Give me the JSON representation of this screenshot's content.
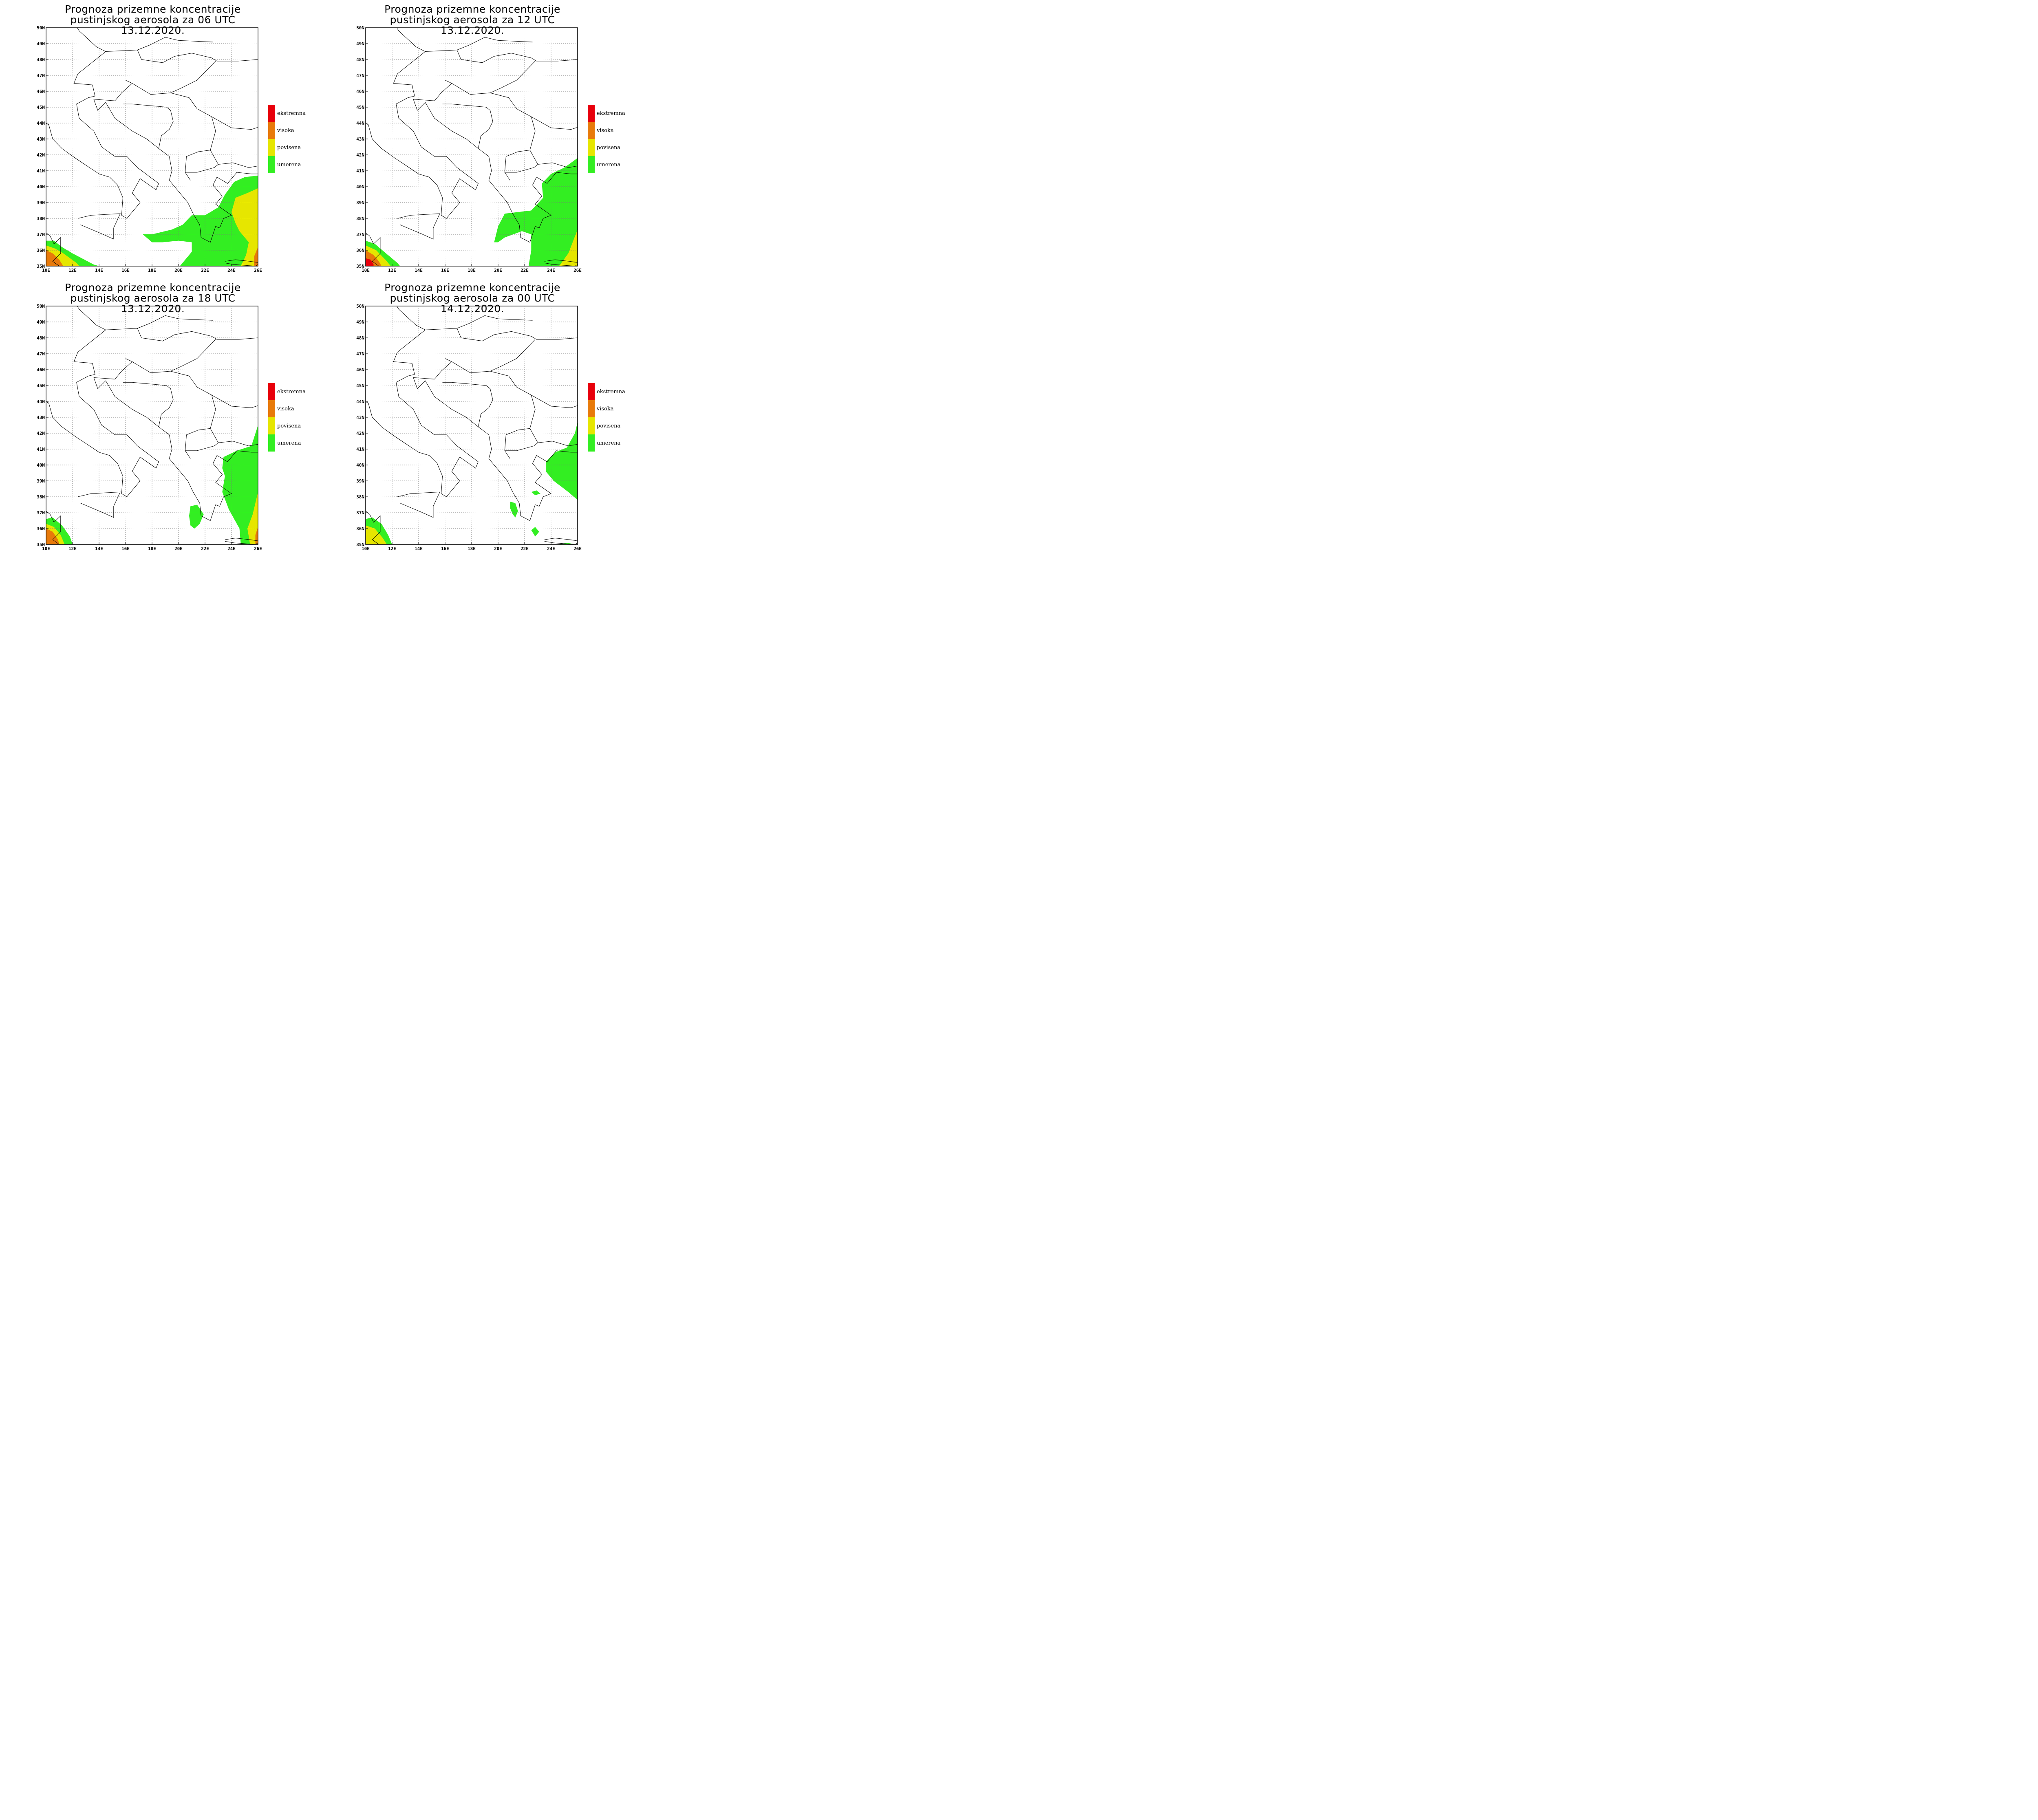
{
  "title_line1": "Prognoza prizemne koncentracije",
  "panels": [
    {
      "title_line2": "pustinjskog aerosola za 06 UTC 13.12.2020."
    },
    {
      "title_line2": "pustinjskog aerosola za 12 UTC 13.12.2020."
    },
    {
      "title_line2": "pustinjskog aerosola za 18 UTC 13.12.2020."
    },
    {
      "title_line2": "pustinjskog aerosola za 00 UTC 14.12.2020."
    }
  ],
  "axes": {
    "lon_labels": [
      "10E",
      "12E",
      "14E",
      "16E",
      "18E",
      "20E",
      "22E",
      "24E",
      "26E"
    ],
    "lat_labels": [
      "35N",
      "36N",
      "37N",
      "38N",
      "39N",
      "40N",
      "41N",
      "42N",
      "43N",
      "44N",
      "45N",
      "46N",
      "47N",
      "48N",
      "49N",
      "50N"
    ]
  },
  "legend": [
    {
      "label": "ekstremna",
      "color": "#e8000b"
    },
    {
      "label": "visoka",
      "color": "#e87a0a"
    },
    {
      "label": "povisena",
      "color": "#e6e600"
    },
    {
      "label": "umerena",
      "color": "#33ee22"
    }
  ],
  "colors": {
    "umerena": "#33ee22",
    "povisena": "#e6e600",
    "visoka": "#e87a0a",
    "ekstremna": "#e8000b"
  },
  "chart_data": {
    "type": "map",
    "lon_range": [
      10,
      26
    ],
    "lat_range": [
      35,
      50
    ],
    "maps": [
      {
        "time": "06 UTC 13.12.2020",
        "regions": [
          {
            "level": "umerena",
            "lonlat": [
              [
                10,
                35
              ],
              [
                10,
                36.6
              ],
              [
                10.6,
                36.6
              ],
              [
                11.2,
                36.2
              ],
              [
                12,
                35.8
              ],
              [
                13.6,
                35.1
              ],
              [
                14,
                35
              ]
            ]
          },
          {
            "level": "povisena",
            "lonlat": [
              [
                10,
                35
              ],
              [
                10,
                36.3
              ],
              [
                10.7,
                36.1
              ],
              [
                11.3,
                35.8
              ],
              [
                12.3,
                35.2
              ],
              [
                12.5,
                35
              ]
            ]
          },
          {
            "level": "visoka",
            "lonlat": [
              [
                10,
                35
              ],
              [
                10,
                36
              ],
              [
                10.5,
                35.8
              ],
              [
                11,
                35.4
              ],
              [
                11.3,
                35
              ]
            ]
          },
          {
            "level": "umerena",
            "lonlat": [
              [
                17.3,
                37
              ],
              [
                18,
                37
              ],
              [
                19.5,
                37.3
              ],
              [
                20.3,
                37.6
              ],
              [
                21,
                38.2
              ],
              [
                22,
                38.2
              ],
              [
                23,
                38.7
              ],
              [
                23.5,
                39.5
              ],
              [
                24.2,
                40.3
              ],
              [
                25,
                40.6
              ],
              [
                26,
                40.7
              ],
              [
                26,
                35
              ],
              [
                20.1,
                35
              ],
              [
                21,
                35.9
              ],
              [
                21,
                36.5
              ],
              [
                20,
                36.6
              ],
              [
                18.8,
                36.5
              ],
              [
                18,
                36.5
              ]
            ]
          },
          {
            "level": "povisena",
            "lonlat": [
              [
                24,
                38.4
              ],
              [
                24.3,
                39.3
              ],
              [
                25.2,
                39.6
              ],
              [
                26,
                39.9
              ],
              [
                26,
                35
              ],
              [
                24.7,
                35
              ],
              [
                25.1,
                35.7
              ],
              [
                25.3,
                36.5
              ],
              [
                24.6,
                37.2
              ],
              [
                24.3,
                37.7
              ]
            ]
          },
          {
            "level": "visoka",
            "lonlat": [
              [
                25.7,
                35
              ],
              [
                25.7,
                35.6
              ],
              [
                26,
                36.2
              ],
              [
                26,
                35
              ]
            ]
          }
        ]
      },
      {
        "time": "12 UTC 13.12.2020",
        "regions": [
          {
            "level": "umerena",
            "lonlat": [
              [
                10,
                35
              ],
              [
                10,
                36.6
              ],
              [
                10.7,
                36.4
              ],
              [
                11.4,
                35.9
              ],
              [
                12.4,
                35.2
              ],
              [
                12.6,
                35
              ]
            ]
          },
          {
            "level": "povisena",
            "lonlat": [
              [
                10,
                35
              ],
              [
                10,
                36.3
              ],
              [
                10.8,
                36
              ],
              [
                11.5,
                35.4
              ],
              [
                11.9,
                35
              ]
            ]
          },
          {
            "level": "visoka",
            "lonlat": [
              [
                10,
                35
              ],
              [
                10,
                36
              ],
              [
                10.6,
                35.7
              ],
              [
                11,
                35.3
              ],
              [
                11.2,
                35
              ]
            ]
          },
          {
            "level": "ekstremna",
            "lonlat": [
              [
                10,
                35
              ],
              [
                10,
                35.5
              ],
              [
                10.4,
                35.4
              ],
              [
                10.6,
                35.1
              ],
              [
                10.6,
                35
              ]
            ]
          },
          {
            "level": "umerena",
            "lonlat": [
              [
                19.7,
                36.5
              ],
              [
                20,
                37.5
              ],
              [
                20.5,
                38.3
              ],
              [
                21.5,
                38.4
              ],
              [
                22.5,
                38.5
              ],
              [
                23.4,
                39.3
              ],
              [
                23.3,
                40.2
              ],
              [
                24,
                40.8
              ],
              [
                25,
                41.2
              ],
              [
                26,
                41.8
              ],
              [
                26,
                35
              ],
              [
                22.3,
                35
              ],
              [
                22.5,
                36
              ],
              [
                22.5,
                37
              ],
              [
                21.8,
                37.2
              ],
              [
                20.5,
                36.8
              ],
              [
                20,
                36.5
              ]
            ]
          },
          {
            "level": "povisena",
            "lonlat": [
              [
                24.6,
                35
              ],
              [
                25.3,
                35.8
              ],
              [
                26,
                37.3
              ],
              [
                26,
                35
              ]
            ]
          }
        ]
      },
      {
        "time": "18 UTC 13.12.2020",
        "regions": [
          {
            "level": "umerena",
            "lonlat": [
              [
                10,
                35
              ],
              [
                10,
                36.6
              ],
              [
                10.5,
                36.7
              ],
              [
                11.2,
                36.2
              ],
              [
                11.8,
                35.5
              ],
              [
                12,
                35
              ]
            ]
          },
          {
            "level": "povisena",
            "lonlat": [
              [
                10,
                35
              ],
              [
                10,
                36.3
              ],
              [
                10.6,
                36.1
              ],
              [
                11.1,
                35.6
              ],
              [
                11.4,
                35
              ]
            ]
          },
          {
            "level": "visoka",
            "lonlat": [
              [
                10,
                35
              ],
              [
                10,
                36
              ],
              [
                10.5,
                35.8
              ],
              [
                10.9,
                35.3
              ],
              [
                11,
                35
              ]
            ]
          },
          {
            "level": "umerena",
            "lonlat": [
              [
                23.3,
                39.8
              ],
              [
                23.4,
                40.5
              ],
              [
                24.4,
                40.9
              ],
              [
                25.5,
                41.2
              ],
              [
                26,
                42.5
              ],
              [
                26,
                35
              ],
              [
                24.7,
                35
              ],
              [
                24.6,
                36
              ],
              [
                23.8,
                37.2
              ],
              [
                23.3,
                38.3
              ],
              [
                23.5,
                39.3
              ]
            ]
          },
          {
            "level": "umerena",
            "lonlat": [
              [
                20.9,
                37.4
              ],
              [
                21.4,
                37.5
              ],
              [
                21.9,
                36.9
              ],
              [
                21.6,
                36.3
              ],
              [
                21.2,
                36
              ],
              [
                20.9,
                36.2
              ],
              [
                20.8,
                36.8
              ]
            ]
          },
          {
            "level": "povisena",
            "lonlat": [
              [
                25.4,
                35
              ],
              [
                25.2,
                36
              ],
              [
                25.6,
                36.9
              ],
              [
                26,
                38.3
              ],
              [
                26,
                35
              ]
            ]
          },
          {
            "level": "visoka",
            "lonlat": [
              [
                25.8,
                35
              ],
              [
                25.8,
                35.6
              ],
              [
                26,
                36.1
              ],
              [
                26,
                35
              ]
            ]
          }
        ]
      },
      {
        "time": "00 UTC 14.12.2020",
        "regions": [
          {
            "level": "umerena",
            "lonlat": [
              [
                10,
                35
              ],
              [
                10,
                36.6
              ],
              [
                10.5,
                36.7
              ],
              [
                11.2,
                36.3
              ],
              [
                11.7,
                35.6
              ],
              [
                12,
                35
              ]
            ]
          },
          {
            "level": "povisena",
            "lonlat": [
              [
                10,
                35
              ],
              [
                10,
                36.2
              ],
              [
                10.7,
                36
              ],
              [
                11.3,
                35.4
              ],
              [
                11.6,
                35
              ]
            ]
          },
          {
            "level": "umerena",
            "lonlat": [
              [
                23.6,
                40.2
              ],
              [
                24.3,
                40.8
              ],
              [
                25.2,
                41.1
              ],
              [
                25.8,
                42
              ],
              [
                26,
                42.7
              ],
              [
                26,
                37.8
              ],
              [
                25.3,
                38.3
              ],
              [
                24.2,
                39
              ],
              [
                23.6,
                39.6
              ]
            ]
          },
          {
            "level": "umerena",
            "lonlat": [
              [
                20.9,
                37.7
              ],
              [
                21.3,
                37.6
              ],
              [
                21.5,
                37.1
              ],
              [
                21.3,
                36.7
              ],
              [
                21.1,
                36.9
              ],
              [
                20.9,
                37.3
              ]
            ]
          },
          {
            "level": "umerena",
            "lonlat": [
              [
                22.5,
                38.3
              ],
              [
                22.9,
                38.4
              ],
              [
                23.2,
                38.2
              ],
              [
                22.8,
                38.1
              ]
            ]
          },
          {
            "level": "umerena",
            "lonlat": [
              [
                22.5,
                35.9
              ],
              [
                22.8,
                36.1
              ],
              [
                23.1,
                35.8
              ],
              [
                22.8,
                35.5
              ]
            ]
          },
          {
            "level": "umerena",
            "lonlat": [
              [
                24.5,
                35
              ],
              [
                25.2,
                35.1
              ],
              [
                25.9,
                35
              ],
              [
                24.5,
                35
              ]
            ]
          }
        ]
      }
    ]
  }
}
